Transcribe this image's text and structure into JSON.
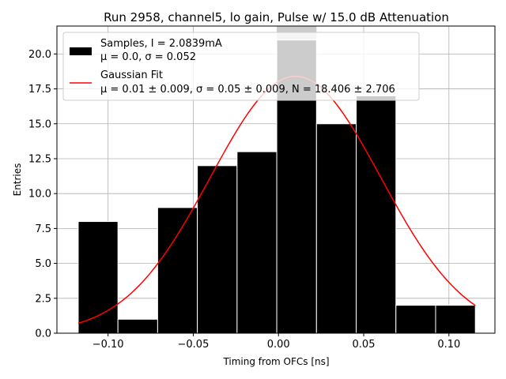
{
  "chart_data": {
    "type": "bar",
    "title": "Run 2958, channel5, lo gain, Pulse w/ 15.0 dB Attenuation",
    "xlabel": "Timing from OFCs [ns]",
    "ylabel": "Entries",
    "xlim": [
      -0.13,
      0.127
    ],
    "ylim": [
      0,
      22
    ],
    "xticks": [
      -0.1,
      -0.05,
      0.0,
      0.05,
      0.1
    ],
    "xtick_labels": [
      "−0.10",
      "−0.05",
      "0.00",
      "0.05",
      "0.10"
    ],
    "yticks": [
      0.0,
      2.5,
      5.0,
      7.5,
      10.0,
      12.5,
      15.0,
      17.5,
      20.0
    ],
    "ytick_labels": [
      "0.0",
      "2.5",
      "5.0",
      "7.5",
      "10.0",
      "12.5",
      "15.0",
      "17.5",
      "20.0"
    ],
    "grid": true,
    "legend_position": "upper-left",
    "bin_edges": [
      -0.1175,
      -0.0942,
      -0.0709,
      -0.0476,
      -0.0243,
      -0.001,
      0.0223,
      0.0456,
      0.0689,
      0.0922,
      0.1155
    ],
    "counts": [
      8,
      1,
      9,
      12,
      13,
      21,
      15,
      17,
      2,
      2
    ],
    "highlight_bin": 5,
    "series": [
      {
        "name": "Samples, I = 2.0839mA",
        "name_line2": "μ = 0.0, σ = 0.052",
        "kind": "histogram",
        "color": "#000000"
      },
      {
        "name": "Gaussian Fit",
        "name_line2": "μ = 0.01 ± 0.009, σ = 0.05 ± 0.009, N = 18.406 ± 2.706",
        "kind": "line",
        "color": "#ff0000",
        "mu": 0.01,
        "sigma": 0.05,
        "N": 18.406,
        "x_range": [
          -0.1175,
          0.1155
        ]
      }
    ],
    "colors": {
      "highlight_bar": "#cccccc",
      "bar_edge": "#ffffff",
      "grid": "#b0b0b0"
    }
  }
}
